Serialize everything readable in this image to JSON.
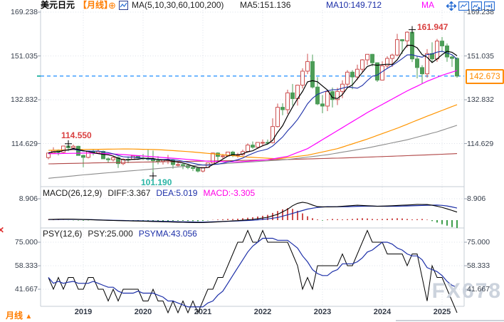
{
  "header": {
    "symbol": "美元日元",
    "period_tag": "【月线】",
    "add_label": "⊕",
    "ma_params": "MA(5,10,30,60,100,200)",
    "ma5": "MA5:151.136",
    "ma10": "MA10:149.712",
    "ma30_partial": "MA"
  },
  "toolbar": {
    "icons": [
      "pan",
      "chart-window",
      "chart-play",
      "goto-latest"
    ]
  },
  "macd": {
    "title": "MACD(26,12,9)",
    "diff": "DIFF:3.367",
    "dea": "DEA:5.019",
    "macd": "MACD:-3.305"
  },
  "psy": {
    "title": "PSY(12,6)",
    "psy": "PSY:25.000",
    "psyma": "PSYMA:43.056"
  },
  "annotations": {
    "high1": "114.550",
    "low1": "101.190",
    "high2": "161.947",
    "last_price": "142.673"
  },
  "footer": {
    "period": "月线",
    "arrow": "▲"
  },
  "watermark": "FX678",
  "colors": {
    "up": "#cc4f4f",
    "down": "#4d9d58",
    "ma5": "#000000",
    "ma10": "#1c2fa8",
    "ma30": "#ff00ff",
    "ma60": "#ff9500",
    "ma100": "#8c8c8c",
    "ma200": "#b04646",
    "diff": "#000000",
    "dea": "#1c2fa8",
    "hist_pos": "#cf4e4e",
    "hist_neg": "#3f9e4d",
    "psy": "#000000",
    "psyma": "#1c2fa8",
    "dashed_line": "#1f8fff",
    "tag": "#ff8c00",
    "accent_orange": "#ff7d00",
    "annotation_red": "#d94040",
    "annotation_teal": "#2ab5a5",
    "grid": "#dde1e9",
    "border": "#c6ccd4",
    "toolbar_blue": "#2b6fd4"
  },
  "chart_data": {
    "type": "candlestick+indicators",
    "symbol": "USD/JPY",
    "period": "monthly",
    "start_month": "2018-06",
    "months": 83,
    "axis": {
      "price_labels": [
        "169.238",
        "151.035",
        "132.832",
        "114.629"
      ],
      "price_values": [
        169.238,
        151.035,
        132.832,
        114.629
      ],
      "macd_labels": [
        "8.906"
      ],
      "macd_values": [
        8.906
      ],
      "psy_labels": [
        "75.000",
        "58.333",
        "41.667"
      ],
      "psy_values": [
        75.0,
        58.333,
        41.667
      ],
      "years": [
        "2019",
        "2020",
        "2021",
        "2022",
        "2023",
        "2024",
        "2025"
      ],
      "grid": "dotted"
    },
    "last_close": 142.673,
    "ohlc": [
      [
        108.8,
        110.9,
        108.1,
        110.7
      ],
      [
        110.7,
        113.1,
        110.3,
        111.8
      ],
      [
        111.8,
        112.2,
        109.7,
        111.0
      ],
      [
        111.0,
        113.7,
        110.6,
        113.6
      ],
      [
        113.6,
        114.55,
        111.4,
        112.9
      ],
      [
        112.9,
        114.2,
        112.3,
        113.5
      ],
      [
        113.5,
        113.7,
        109.6,
        109.7
      ],
      [
        109.7,
        110.0,
        104.8,
        108.9
      ],
      [
        108.9,
        111.5,
        108.5,
        111.4
      ],
      [
        111.4,
        112.1,
        109.7,
        110.8
      ],
      [
        110.8,
        112.4,
        110.4,
        111.4
      ],
      [
        111.4,
        111.7,
        108.3,
        108.3
      ],
      [
        108.3,
        108.9,
        106.8,
        107.9
      ],
      [
        107.9,
        109.3,
        107.2,
        108.8
      ],
      [
        108.8,
        109.3,
        104.5,
        106.3
      ],
      [
        106.3,
        108.5,
        105.7,
        108.1
      ],
      [
        108.1,
        109.3,
        106.5,
        108.0
      ],
      [
        108.0,
        109.7,
        107.9,
        109.5
      ],
      [
        109.5,
        109.7,
        107.9,
        108.6
      ],
      [
        108.6,
        110.3,
        107.7,
        108.4
      ],
      [
        108.4,
        112.2,
        107.5,
        108.1
      ],
      [
        108.1,
        111.7,
        101.19,
        107.5
      ],
      [
        107.5,
        109.4,
        106.0,
        107.2
      ],
      [
        107.2,
        108.1,
        105.9,
        107.8
      ],
      [
        107.8,
        109.9,
        106.1,
        107.9
      ],
      [
        107.9,
        108.2,
        104.2,
        105.9
      ],
      [
        105.9,
        107.0,
        105.1,
        105.9
      ],
      [
        105.9,
        106.5,
        104.0,
        105.5
      ],
      [
        105.5,
        106.1,
        104.0,
        104.7
      ],
      [
        104.7,
        105.7,
        103.2,
        104.3
      ],
      [
        104.3,
        104.8,
        102.6,
        103.2
      ],
      [
        103.2,
        104.9,
        102.6,
        104.7
      ],
      [
        104.7,
        106.7,
        104.5,
        106.6
      ],
      [
        106.6,
        110.9,
        106.4,
        110.7
      ],
      [
        110.7,
        111.0,
        107.5,
        109.3
      ],
      [
        109.3,
        110.3,
        108.3,
        109.5
      ],
      [
        109.5,
        111.1,
        109.2,
        111.1
      ],
      [
        111.1,
        111.6,
        109.0,
        109.7
      ],
      [
        109.7,
        110.8,
        108.7,
        110.0
      ],
      [
        110.0,
        112.1,
        109.6,
        111.3
      ],
      [
        111.3,
        114.7,
        110.8,
        114.0
      ],
      [
        114.0,
        115.5,
        112.5,
        113.1
      ],
      [
        113.1,
        115.0,
        112.5,
        115.1
      ],
      [
        115.1,
        116.35,
        113.5,
        115.1
      ],
      [
        115.1,
        116.3,
        114.2,
        115.0
      ],
      [
        115.0,
        125.1,
        114.7,
        121.7
      ],
      [
        121.7,
        131.25,
        121.3,
        129.7
      ],
      [
        129.7,
        131.35,
        126.4,
        128.7
      ],
      [
        128.7,
        137.0,
        126.9,
        135.7
      ],
      [
        135.7,
        139.4,
        130.4,
        133.3
      ],
      [
        133.3,
        139.1,
        130.4,
        138.9
      ],
      [
        138.9,
        145.9,
        137.5,
        144.7
      ],
      [
        144.7,
        151.94,
        143.5,
        148.7
      ],
      [
        148.7,
        151.6,
        137.5,
        138.1
      ],
      [
        138.1,
        142.25,
        130.6,
        131.1
      ],
      [
        131.1,
        134.8,
        127.2,
        130.2
      ],
      [
        130.2,
        136.9,
        128.1,
        136.2
      ],
      [
        136.2,
        137.9,
        129.6,
        132.9
      ],
      [
        132.9,
        137.8,
        130.6,
        136.3
      ],
      [
        136.3,
        140.9,
        133.5,
        139.3
      ],
      [
        139.3,
        145.1,
        138.4,
        144.3
      ],
      [
        144.3,
        145.1,
        137.2,
        142.3
      ],
      [
        142.3,
        147.4,
        141.0,
        145.5
      ],
      [
        145.5,
        149.7,
        144.4,
        149.4
      ],
      [
        149.4,
        151.7,
        147.3,
        151.7
      ],
      [
        151.7,
        151.9,
        146.7,
        148.2
      ],
      [
        148.2,
        148.3,
        140.25,
        141.0
      ],
      [
        141.0,
        148.8,
        140.8,
        146.9
      ],
      [
        146.9,
        150.9,
        145.9,
        150.0
      ],
      [
        150.0,
        151.97,
        146.5,
        151.4
      ],
      [
        151.4,
        160.2,
        150.8,
        157.8
      ],
      [
        157.8,
        158.0,
        151.9,
        157.3
      ],
      [
        157.3,
        161.3,
        154.5,
        160.9
      ],
      [
        160.9,
        161.947,
        148.5,
        149.8
      ],
      [
        149.8,
        150.9,
        141.7,
        146.2
      ],
      [
        146.2,
        147.2,
        139.58,
        143.6
      ],
      [
        143.6,
        153.9,
        142.0,
        152.0
      ],
      [
        152.0,
        156.7,
        148.1,
        149.8
      ],
      [
        149.8,
        158.1,
        148.6,
        157.2
      ],
      [
        157.2,
        158.9,
        152.6,
        155.2
      ],
      [
        155.2,
        156.2,
        148.6,
        150.6
      ],
      [
        150.6,
        151.2,
        146.5,
        150.0
      ],
      [
        150.0,
        150.5,
        141.97,
        142.673
      ]
    ],
    "ma_sampled": {
      "ma30": [
        [
          0,
          110.4
        ],
        [
          8,
          110.7
        ],
        [
          14,
          110.2
        ],
        [
          20,
          109.3
        ],
        [
          26,
          108.4
        ],
        [
          32,
          107.3
        ],
        [
          38,
          107.0
        ],
        [
          44,
          107.9
        ],
        [
          48,
          109.3
        ],
        [
          52,
          112.5
        ],
        [
          56,
          117.5
        ],
        [
          60,
          122.5
        ],
        [
          64,
          127.5
        ],
        [
          68,
          132.0
        ],
        [
          72,
          136.5
        ],
        [
          76,
          140.5
        ],
        [
          79,
          143.0
        ],
        [
          82,
          145.0
        ]
      ],
      "ma60": [
        [
          0,
          111.8
        ],
        [
          8,
          112.2
        ],
        [
          16,
          112.4
        ],
        [
          22,
          112.1
        ],
        [
          28,
          111.3
        ],
        [
          34,
          110.2
        ],
        [
          40,
          109.0
        ],
        [
          46,
          108.3
        ],
        [
          52,
          109.8
        ],
        [
          58,
          112.5
        ],
        [
          64,
          116.5
        ],
        [
          70,
          121.0
        ],
        [
          76,
          126.0
        ],
        [
          82,
          130.8
        ]
      ],
      "ma100": [
        [
          0,
          100.2
        ],
        [
          8,
          101.8
        ],
        [
          16,
          103.2
        ],
        [
          24,
          104.6
        ],
        [
          32,
          105.9
        ],
        [
          40,
          106.9
        ],
        [
          48,
          108.0
        ],
        [
          56,
          110.0
        ],
        [
          64,
          112.8
        ],
        [
          72,
          116.2
        ],
        [
          78,
          119.5
        ],
        [
          82,
          122.2
        ]
      ],
      "ma200": [
        [
          0,
          106.2
        ],
        [
          12,
          106.7
        ],
        [
          24,
          107.1
        ],
        [
          36,
          107.5
        ],
        [
          48,
          108.0
        ],
        [
          60,
          108.7
        ],
        [
          72,
          109.6
        ],
        [
          82,
          110.45
        ]
      ]
    },
    "macd": {
      "params": [
        26,
        12,
        9
      ],
      "diff_last": 3.367,
      "dea_last": 5.019,
      "hist_last": -3.305,
      "hist": [
        0.15,
        0.2,
        0.1,
        0.05,
        -0.05,
        -0.1,
        -0.15,
        -0.2,
        -0.1,
        0,
        0.05,
        -0.05,
        -0.1,
        -0.15,
        -0.2,
        -0.25,
        -0.2,
        -0.15,
        -0.2,
        -0.25,
        -0.3,
        -0.35,
        -0.4,
        -0.45,
        -0.4,
        -0.3,
        -0.25,
        -0.3,
        -0.35,
        -0.4,
        -0.45,
        -0.35,
        -0.15,
        0.1,
        0.25,
        0.35,
        0.5,
        0.45,
        0.6,
        0.8,
        1.0,
        1.2,
        1.5,
        1.8,
        2.2,
        3.0,
        3.8,
        4.5,
        5.0,
        4.7,
        3.9,
        2.8,
        1.6,
        0.8,
        0.3,
        -0.2,
        0.3,
        0.5,
        0.4,
        0.3,
        0.4,
        0.5,
        0.7,
        0.8,
        0.7,
        0.5,
        0.4,
        0.5,
        0.6,
        0.7,
        0.8,
        0.7,
        0.5,
        0.3,
        0.4,
        0.5,
        0.2,
        -0.4,
        -1.0,
        -1.7,
        -2.3,
        -2.9,
        -3.305
      ],
      "diff_points": [
        [
          0,
          0.3
        ],
        [
          4,
          0.45
        ],
        [
          8,
          0.2
        ],
        [
          12,
          -0.1
        ],
        [
          16,
          -0.3
        ],
        [
          20,
          -0.5
        ],
        [
          24,
          -0.75
        ],
        [
          28,
          -0.95
        ],
        [
          31,
          -1.05
        ],
        [
          34,
          -0.7
        ],
        [
          38,
          -0.2
        ],
        [
          41,
          0.3
        ],
        [
          44,
          1.2
        ],
        [
          46,
          2.4
        ],
        [
          48,
          4.5
        ],
        [
          49,
          6.0
        ],
        [
          50,
          7.0
        ],
        [
          51,
          7.45
        ],
        [
          52,
          7.1
        ],
        [
          53,
          6.3
        ],
        [
          54,
          5.6
        ],
        [
          56,
          5.5
        ],
        [
          58,
          5.6
        ],
        [
          60,
          5.9
        ],
        [
          62,
          6.2
        ],
        [
          64,
          6.0
        ],
        [
          66,
          5.8
        ],
        [
          68,
          5.9
        ],
        [
          70,
          6.1
        ],
        [
          72,
          6.3
        ],
        [
          74,
          6.55
        ],
        [
          76,
          6.5
        ],
        [
          77,
          6.2
        ],
        [
          78,
          5.8
        ],
        [
          79,
          5.3
        ],
        [
          80,
          4.7
        ],
        [
          81,
          4.05
        ],
        [
          82,
          3.367
        ]
      ],
      "dea_points": [
        [
          0,
          0.25
        ],
        [
          4,
          0.35
        ],
        [
          8,
          0.25
        ],
        [
          12,
          0.0
        ],
        [
          16,
          -0.2
        ],
        [
          20,
          -0.35
        ],
        [
          24,
          -0.55
        ],
        [
          28,
          -0.75
        ],
        [
          31,
          -0.85
        ],
        [
          34,
          -0.65
        ],
        [
          38,
          -0.35
        ],
        [
          41,
          -0.05
        ],
        [
          44,
          0.5
        ],
        [
          46,
          1.1
        ],
        [
          48,
          2.2
        ],
        [
          50,
          3.4
        ],
        [
          52,
          4.6
        ],
        [
          54,
          5.3
        ],
        [
          56,
          5.6
        ],
        [
          58,
          5.55
        ],
        [
          60,
          5.6
        ],
        [
          62,
          5.75
        ],
        [
          64,
          5.85
        ],
        [
          66,
          5.8
        ],
        [
          68,
          5.75
        ],
        [
          70,
          5.8
        ],
        [
          72,
          5.9
        ],
        [
          74,
          6.05
        ],
        [
          76,
          6.2
        ],
        [
          78,
          6.25
        ],
        [
          79,
          6.15
        ],
        [
          80,
          5.9
        ],
        [
          81,
          5.5
        ],
        [
          82,
          5.019
        ]
      ]
    },
    "psy": {
      "params": [
        12,
        6
      ],
      "psy_last": 25.0,
      "psyma_last": 43.056,
      "psyma_period": 6,
      "values": [
        50,
        41.667,
        50,
        41.667,
        50,
        50,
        41.667,
        41.667,
        50,
        50,
        41.667,
        41.667,
        33.333,
        41.667,
        33.333,
        41.667,
        41.667,
        41.667,
        41.667,
        33.333,
        33.333,
        41.667,
        33.333,
        33.333,
        25,
        33.333,
        25,
        33.333,
        25,
        33.333,
        25,
        33.333,
        41.667,
        41.667,
        50,
        50,
        58.333,
        66.667,
        75,
        75,
        83.333,
        75,
        75,
        83.333,
        75,
        75,
        75,
        75,
        75,
        66.667,
        58.333,
        41.667,
        50,
        41.667,
        58.333,
        58.333,
        58.333,
        58.333,
        58.333,
        66.667,
        58.333,
        58.333,
        66.667,
        75,
        83.333,
        75,
        75,
        75,
        66.667,
        66.667,
        66.667,
        66.667,
        58.333,
        66.667,
        66.667,
        50,
        33.333,
        58.333,
        50,
        50,
        41.667,
        33.333,
        25
      ]
    },
    "extremes": [
      {
        "index": 4,
        "value": 114.55,
        "type": "high"
      },
      {
        "index": 21,
        "value": 101.19,
        "type": "low"
      },
      {
        "index": 73,
        "value": 161.947,
        "type": "high"
      }
    ]
  }
}
